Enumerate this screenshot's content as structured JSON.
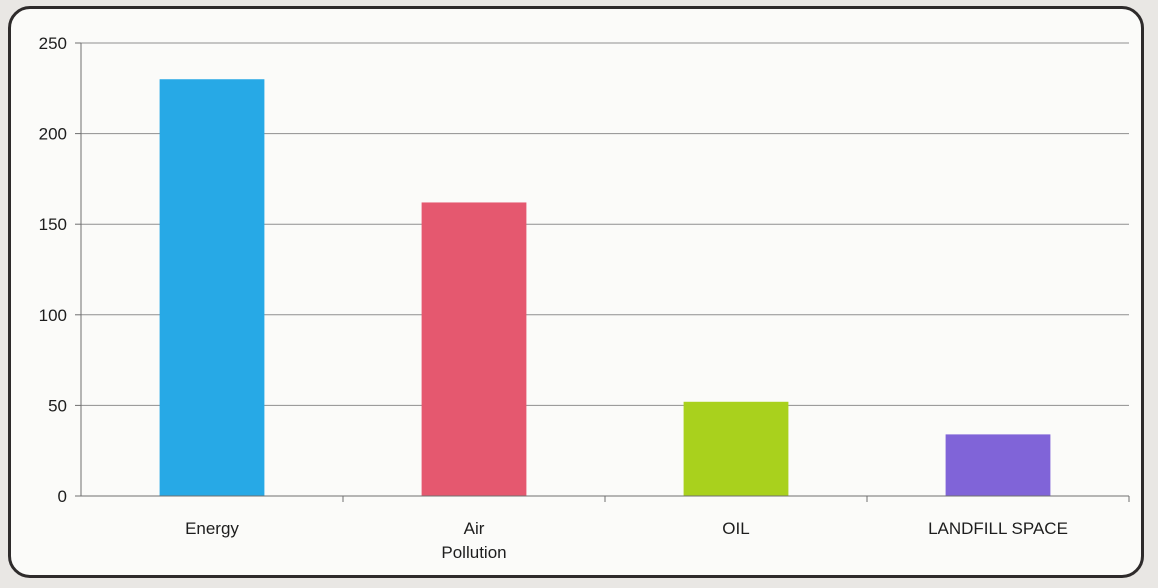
{
  "chart_data": {
    "type": "bar",
    "title": "",
    "xlabel": "",
    "ylabel": "",
    "categories": [
      "Energy",
      "Air Pollution",
      "OIL",
      "LANDFILL SPACE"
    ],
    "category_lines": [
      [
        "Energy"
      ],
      [
        "Air",
        "Pollution"
      ],
      [
        "OIL"
      ],
      [
        "LANDFILL SPACE"
      ]
    ],
    "values": [
      230,
      162,
      52,
      34
    ],
    "ylim": [
      0,
      250
    ],
    "yticks": [
      0,
      50,
      100,
      150,
      200,
      250
    ],
    "grid": true,
    "legend": "none",
    "colors": [
      "#27a9e6",
      "#e5586f",
      "#a9d11d",
      "#8064d8"
    ]
  }
}
